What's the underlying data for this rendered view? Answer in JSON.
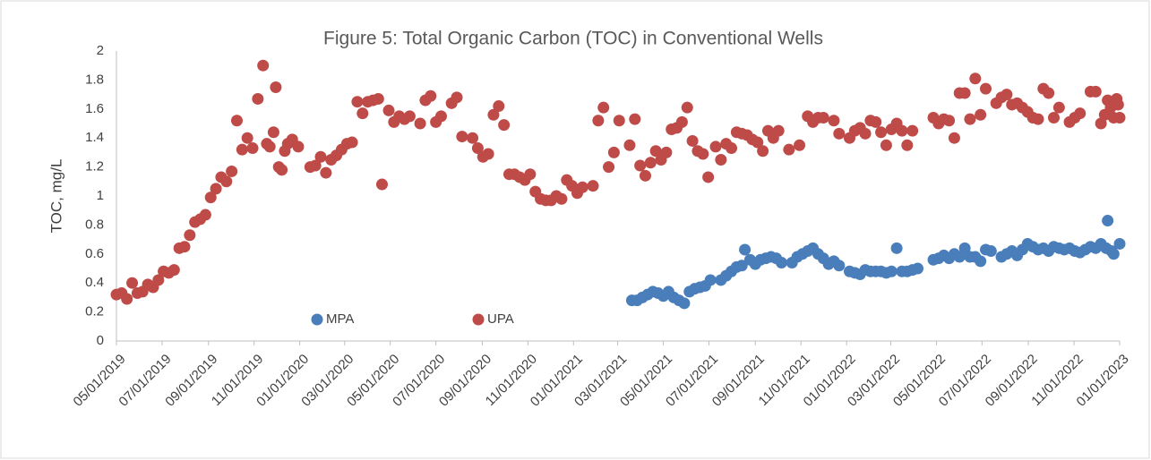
{
  "chart_data": {
    "type": "scatter",
    "title": "Figure 5: Total Organic Carbon (TOC) in Conventional Wells",
    "y_label": "TOC, mg/L",
    "xlim": [
      "05/01/2019",
      "01/01/2023"
    ],
    "xticks": [
      "05/01/2019",
      "07/01/2019",
      "09/01/2019",
      "11/01/2019",
      "01/01/2020",
      "03/01/2020",
      "05/01/2020",
      "07/01/2020",
      "09/01/2020",
      "11/01/2020",
      "01/01/2021",
      "03/01/2021",
      "05/01/2021",
      "07/01/2021",
      "09/01/2021",
      "11/01/2021",
      "01/01/2022",
      "03/01/2022",
      "05/01/2022",
      "07/01/2022",
      "09/01/2022",
      "11/01/2022",
      "01/01/2023"
    ],
    "ylim": [
      0,
      2
    ],
    "yticks": [
      0,
      0.2,
      0.4,
      0.6,
      0.8,
      1,
      1.2,
      1.4,
      1.6,
      1.8,
      2
    ],
    "grid": false,
    "legend": "bottom",
    "series": [
      {
        "name": "MPA",
        "color": "#4a7ebb",
        "x": [
          "03/20/2021",
          "03/27/2021",
          "04/03/2021",
          "04/10/2021",
          "04/17/2021",
          "04/24/2021",
          "05/01/2021",
          "05/08/2021",
          "05/15/2021",
          "05/22/2021",
          "05/29/2021",
          "06/05/2021",
          "06/12/2021",
          "06/19/2021",
          "06/26/2021",
          "07/03/2021",
          "07/17/2021",
          "07/24/2021",
          "07/31/2021",
          "08/07/2021",
          "08/14/2021",
          "08/18/2021",
          "08/25/2021",
          "09/01/2021",
          "09/08/2021",
          "09/15/2021",
          "09/22/2021",
          "09/29/2021",
          "10/06/2021",
          "10/20/2021",
          "10/27/2021",
          "11/03/2021",
          "11/10/2021",
          "11/17/2021",
          "11/24/2021",
          "12/01/2021",
          "12/08/2021",
          "12/15/2021",
          "12/22/2021",
          "01/05/2022",
          "01/12/2022",
          "01/19/2022",
          "01/26/2022",
          "02/02/2022",
          "02/09/2022",
          "02/16/2022",
          "02/23/2022",
          "03/02/2022",
          "03/09/2022",
          "03/16/2022",
          "03/23/2022",
          "03/30/2022",
          "04/06/2022",
          "04/27/2022",
          "05/04/2022",
          "05/11/2022",
          "05/18/2022",
          "05/25/2022",
          "06/01/2022",
          "06/08/2022",
          "06/15/2022",
          "06/22/2022",
          "06/29/2022",
          "07/06/2022",
          "07/13/2022",
          "07/27/2022",
          "08/03/2022",
          "08/10/2022",
          "08/17/2022",
          "08/24/2022",
          "08/31/2022",
          "09/07/2022",
          "09/14/2022",
          "09/21/2022",
          "09/28/2022",
          "10/05/2022",
          "10/12/2022",
          "10/19/2022",
          "10/26/2022",
          "11/02/2022",
          "11/09/2022",
          "11/16/2022",
          "11/23/2022",
          "11/30/2022",
          "12/07/2022",
          "12/14/2022",
          "12/16/2022",
          "12/21/2022",
          "12/24/2022",
          "01/01/2023"
        ],
        "values": [
          0.28,
          0.28,
          0.3,
          0.32,
          0.34,
          0.33,
          0.31,
          0.34,
          0.3,
          0.28,
          0.26,
          0.34,
          0.36,
          0.37,
          0.38,
          0.42,
          0.42,
          0.45,
          0.48,
          0.51,
          0.52,
          0.63,
          0.56,
          0.53,
          0.56,
          0.57,
          0.58,
          0.57,
          0.54,
          0.54,
          0.58,
          0.6,
          0.62,
          0.64,
          0.6,
          0.57,
          0.53,
          0.55,
          0.52,
          0.48,
          0.47,
          0.46,
          0.49,
          0.48,
          0.48,
          0.48,
          0.47,
          0.48,
          0.64,
          0.48,
          0.48,
          0.49,
          0.5,
          0.56,
          0.57,
          0.59,
          0.57,
          0.6,
          0.58,
          0.64,
          0.58,
          0.58,
          0.55,
          0.63,
          0.62,
          0.58,
          0.6,
          0.62,
          0.59,
          0.63,
          0.67,
          0.65,
          0.63,
          0.64,
          0.62,
          0.65,
          0.64,
          0.63,
          0.64,
          0.62,
          0.61,
          0.63,
          0.65,
          0.64,
          0.67,
          0.64,
          0.83,
          0.62,
          0.6,
          0.67
        ]
      },
      {
        "name": "UPA",
        "color": "#be4b48",
        "x": [
          "05/01/2019",
          "05/08/2019",
          "05/15/2019",
          "05/22/2019",
          "05/29/2019",
          "06/05/2019",
          "06/12/2019",
          "06/19/2019",
          "06/26/2019",
          "07/03/2019",
          "07/10/2019",
          "07/17/2019",
          "07/24/2019",
          "07/31/2019",
          "08/07/2019",
          "08/14/2019",
          "08/21/2019",
          "08/28/2019",
          "09/04/2019",
          "09/11/2019",
          "09/18/2019",
          "09/25/2019",
          "10/02/2019",
          "10/09/2019",
          "10/16/2019",
          "10/23/2019",
          "10/30/2019",
          "11/06/2019",
          "11/13/2019",
          "11/18/2019",
          "11/22/2019",
          "11/27/2019",
          "11/30/2019",
          "12/04/2019",
          "12/08/2019",
          "12/12/2019",
          "12/16/2019",
          "12/22/2019",
          "12/30/2019",
          "01/15/2020",
          "01/22/2020",
          "01/29/2020",
          "02/05/2020",
          "02/12/2020",
          "02/19/2020",
          "02/26/2020",
          "03/04/2020",
          "03/11/2020",
          "03/18/2020",
          "03/25/2020",
          "04/01/2020",
          "04/08/2020",
          "04/15/2020",
          "04/20/2020",
          "04/29/2020",
          "05/06/2020",
          "05/13/2020",
          "05/20/2020",
          "05/27/2020",
          "06/10/2020",
          "06/17/2020",
          "06/24/2020",
          "07/01/2020",
          "07/08/2020",
          "07/22/2020",
          "07/29/2020",
          "08/05/2020",
          "08/19/2020",
          "08/26/2020",
          "09/02/2020",
          "09/09/2020",
          "09/16/2020",
          "09/23/2020",
          "09/30/2020",
          "10/07/2020",
          "10/14/2020",
          "10/21/2020",
          "10/28/2020",
          "11/04/2020",
          "11/11/2020",
          "11/18/2020",
          "11/25/2020",
          "12/02/2020",
          "12/09/2020",
          "12/16/2020",
          "12/23/2020",
          "12/30/2020",
          "01/06/2021",
          "01/13/2021",
          "01/27/2021",
          "02/03/2021",
          "02/10/2021",
          "02/17/2021",
          "02/24/2021",
          "03/03/2021",
          "03/17/2021",
          "03/24/2021",
          "03/31/2021",
          "04/07/2021",
          "04/14/2021",
          "04/21/2021",
          "04/28/2021",
          "05/05/2021",
          "05/12/2021",
          "05/19/2021",
          "05/26/2021",
          "06/02/2021",
          "06/09/2021",
          "06/16/2021",
          "06/23/2021",
          "06/30/2021",
          "07/10/2021",
          "07/17/2021",
          "07/24/2021",
          "07/31/2021",
          "08/07/2021",
          "08/14/2021",
          "08/21/2021",
          "08/28/2021",
          "09/04/2021",
          "09/11/2021",
          "09/18/2021",
          "09/25/2021",
          "10/02/2021",
          "10/16/2021",
          "10/30/2021",
          "11/10/2021",
          "11/17/2021",
          "11/24/2021",
          "12/01/2021",
          "12/15/2021",
          "12/22/2021",
          "01/05/2022",
          "01/12/2022",
          "01/19/2022",
          "01/26/2022",
          "02/02/2022",
          "02/09/2022",
          "02/16/2022",
          "02/23/2022",
          "03/02/2022",
          "03/09/2022",
          "03/16/2022",
          "03/23/2022",
          "03/30/2022",
          "04/27/2022",
          "05/04/2022",
          "05/11/2022",
          "05/18/2022",
          "05/25/2022",
          "06/01/2022",
          "06/08/2022",
          "06/15/2022",
          "06/22/2022",
          "06/29/2022",
          "07/06/2022",
          "07/20/2022",
          "07/27/2022",
          "08/03/2022",
          "08/10/2022",
          "08/17/2022",
          "08/24/2022",
          "08/31/2022",
          "09/07/2022",
          "09/14/2022",
          "09/21/2022",
          "09/28/2022",
          "10/05/2022",
          "10/12/2022",
          "10/26/2022",
          "11/02/2022",
          "11/09/2022",
          "11/23/2022",
          "11/30/2022",
          "12/07/2022",
          "12/12/2022",
          "12/16/2022",
          "12/20/2022",
          "12/24/2022",
          "12/28/2022",
          "12/30/2022",
          "01/01/2023"
        ],
        "values": [
          0.32,
          0.33,
          0.29,
          0.4,
          0.33,
          0.34,
          0.39,
          0.37,
          0.42,
          0.48,
          0.47,
          0.49,
          0.64,
          0.65,
          0.73,
          0.82,
          0.84,
          0.87,
          0.99,
          1.05,
          1.13,
          1.1,
          1.17,
          1.52,
          1.32,
          1.4,
          1.33,
          1.67,
          1.9,
          1.36,
          1.34,
          1.44,
          1.75,
          1.2,
          1.18,
          1.31,
          1.36,
          1.39,
          1.34,
          1.2,
          1.21,
          1.27,
          1.16,
          1.25,
          1.28,
          1.32,
          1.36,
          1.37,
          1.65,
          1.57,
          1.65,
          1.66,
          1.67,
          1.08,
          1.59,
          1.51,
          1.55,
          1.53,
          1.55,
          1.5,
          1.66,
          1.69,
          1.51,
          1.55,
          1.64,
          1.68,
          1.41,
          1.4,
          1.33,
          1.27,
          1.29,
          1.56,
          1.62,
          1.49,
          1.15,
          1.15,
          1.13,
          1.11,
          1.15,
          1.03,
          0.98,
          0.97,
          0.97,
          1,
          0.98,
          1.11,
          1.07,
          1.02,
          1.06,
          1.07,
          1.52,
          1.61,
          1.2,
          1.3,
          1.52,
          1.35,
          1.53,
          1.21,
          1.14,
          1.23,
          1.31,
          1.25,
          1.3,
          1.46,
          1.47,
          1.51,
          1.61,
          1.38,
          1.31,
          1.29,
          1.13,
          1.34,
          1.25,
          1.36,
          1.33,
          1.44,
          1.43,
          1.42,
          1.39,
          1.37,
          1.31,
          1.45,
          1.4,
          1.45,
          1.32,
          1.35,
          1.55,
          1.51,
          1.54,
          1.54,
          1.52,
          1.43,
          1.4,
          1.45,
          1.47,
          1.43,
          1.52,
          1.51,
          1.44,
          1.35,
          1.46,
          1.5,
          1.45,
          1.35,
          1.45,
          1.54,
          1.5,
          1.53,
          1.52,
          1.4,
          1.71,
          1.71,
          1.53,
          1.81,
          1.56,
          1.74,
          1.64,
          1.68,
          1.7,
          1.63,
          1.64,
          1.61,
          1.58,
          1.54,
          1.53,
          1.74,
          1.71,
          1.54,
          1.61,
          1.51,
          1.54,
          1.57,
          1.72,
          1.72,
          1.5,
          1.56,
          1.66,
          1.61,
          1.54,
          1.67,
          1.63,
          1.54
        ]
      }
    ]
  }
}
